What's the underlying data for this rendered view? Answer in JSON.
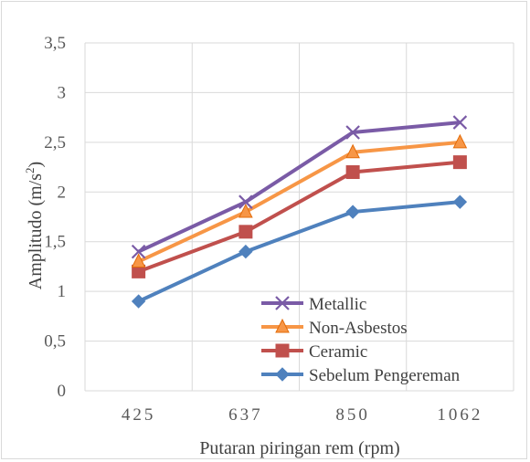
{
  "chart_data": {
    "type": "line",
    "title": "",
    "xlabel": "Putaran piringan rem (rpm)",
    "ylabel_main": "Amplitudo (m/s",
    "ylabel_sup": "2",
    "ylabel_tail": ")",
    "categories": [
      "425",
      "637",
      "850",
      "1062"
    ],
    "ylim": [
      0,
      3.5
    ],
    "yticks": [
      "0",
      "0,5",
      "1",
      "1,5",
      "2",
      "2,5",
      "3",
      "3,5"
    ],
    "grid": true,
    "legend_position": "inside-bottom-right",
    "series": [
      {
        "name": "Metallic",
        "values": [
          1.4,
          1.9,
          2.6,
          2.7
        ],
        "color": "#7a5ba6",
        "marker": "x"
      },
      {
        "name": "Non-Asbestos",
        "values": [
          1.3,
          1.8,
          2.4,
          2.5
        ],
        "color": "#f79646",
        "marker": "triangle"
      },
      {
        "name": "Ceramic",
        "values": [
          1.2,
          1.6,
          2.2,
          2.3
        ],
        "color": "#c0504d",
        "marker": "square"
      },
      {
        "name": "Sebelum Pengereman",
        "values": [
          0.9,
          1.4,
          1.8,
          1.9
        ],
        "color": "#4f81bd",
        "marker": "diamond"
      }
    ]
  }
}
